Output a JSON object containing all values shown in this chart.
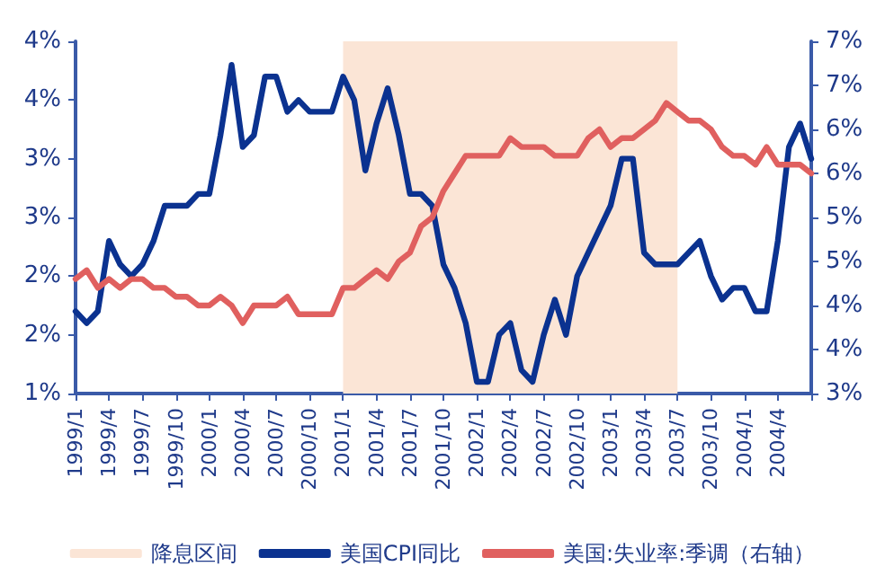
{
  "chart_data": {
    "type": "line",
    "categories": [
      "1999/1",
      null,
      null,
      "1999/4",
      null,
      null,
      "1999/7",
      null,
      null,
      "1999/10",
      null,
      null,
      "2000/1",
      null,
      null,
      "2000/4",
      null,
      null,
      "2000/7",
      null,
      null,
      "2000/10",
      null,
      null,
      "2001/1",
      null,
      null,
      "2001/4",
      null,
      null,
      "2001/7",
      null,
      null,
      "2001/10",
      null,
      null,
      "2002/1",
      null,
      null,
      "2002/4",
      null,
      null,
      "2002/7",
      null,
      null,
      "2002/10",
      null,
      null,
      "2003/1",
      null,
      null,
      "2003/4",
      null,
      null,
      "2003/7",
      null,
      null,
      "2003/10",
      null,
      null,
      "2004/1",
      null,
      null,
      "2004/4",
      null,
      null,
      null
    ],
    "series": [
      {
        "name": "美国CPI同比",
        "color": "#0b3290",
        "values": [
          1.7,
          1.6,
          1.7,
          2.3,
          2.1,
          2.0,
          2.1,
          2.3,
          2.6,
          2.6,
          2.6,
          2.7,
          2.7,
          3.2,
          3.8,
          3.1,
          3.2,
          3.7,
          3.7,
          3.4,
          3.5,
          3.4,
          3.4,
          3.4,
          3.7,
          3.5,
          2.9,
          3.3,
          3.6,
          3.2,
          2.7,
          2.7,
          2.6,
          2.1,
          1.9,
          1.6,
          1.1,
          1.1,
          1.5,
          1.6,
          1.2,
          1.1,
          1.5,
          1.8,
          1.5,
          2.0,
          2.2,
          2.4,
          2.6,
          3.0,
          3.0,
          2.2,
          2.1,
          2.1,
          2.1,
          2.2,
          2.3,
          2.0,
          1.8,
          1.9,
          1.9,
          1.7,
          1.7,
          2.3,
          3.1,
          3.3,
          3.0
        ]
      },
      {
        "name": "美国:失业率:季调（右轴）",
        "color": "#e0605f",
        "axis": "y2",
        "values": [
          4.3,
          4.4,
          4.2,
          4.3,
          4.2,
          4.3,
          4.3,
          4.2,
          4.2,
          4.1,
          4.1,
          4.0,
          4.0,
          4.1,
          4.0,
          3.8,
          4.0,
          4.0,
          4.0,
          4.1,
          3.9,
          3.9,
          3.9,
          3.9,
          4.2,
          4.2,
          4.3,
          4.4,
          4.3,
          4.5,
          4.6,
          4.9,
          5.0,
          5.3,
          5.5,
          5.7,
          5.7,
          5.7,
          5.7,
          5.9,
          5.8,
          5.8,
          5.8,
          5.7,
          5.7,
          5.7,
          5.9,
          6.0,
          5.8,
          5.9,
          5.9,
          6.0,
          6.1,
          6.3,
          6.2,
          6.1,
          6.1,
          6.0,
          5.8,
          5.7,
          5.7,
          5.6,
          5.8,
          5.6,
          5.6,
          5.6,
          5.5
        ]
      }
    ],
    "ylim": [
      1,
      4
    ],
    "yticks": [
      {
        "value": 1,
        "label": "1%"
      },
      {
        "value": 1.5,
        "label": "2%"
      },
      {
        "value": 2,
        "label": "2%"
      },
      {
        "value": 2.5,
        "label": "3%"
      },
      {
        "value": 3,
        "label": "3%"
      },
      {
        "value": 3.5,
        "label": "4%"
      },
      {
        "value": 4,
        "label": "4%"
      }
    ],
    "y2lim": [
      3,
      7
    ],
    "y2ticks": [
      {
        "value": 3,
        "label": "3%"
      },
      {
        "value": 3.5,
        "label": "4%"
      },
      {
        "value": 4,
        "label": "4%"
      },
      {
        "value": 4.5,
        "label": "5%"
      },
      {
        "value": 5,
        "label": "5%"
      },
      {
        "value": 5.5,
        "label": "6%"
      },
      {
        "value": 6,
        "label": "6%"
      },
      {
        "value": 6.5,
        "label": "7%"
      },
      {
        "value": 7,
        "label": "7%"
      }
    ],
    "bands": [
      {
        "axis": "x",
        "from": "2001/1",
        "to": "2003/7",
        "label": "降息区间",
        "color": "#fbe5d6"
      }
    ],
    "legend": "bottom",
    "grid": false,
    "marker": "none",
    "line_style": "solid"
  }
}
